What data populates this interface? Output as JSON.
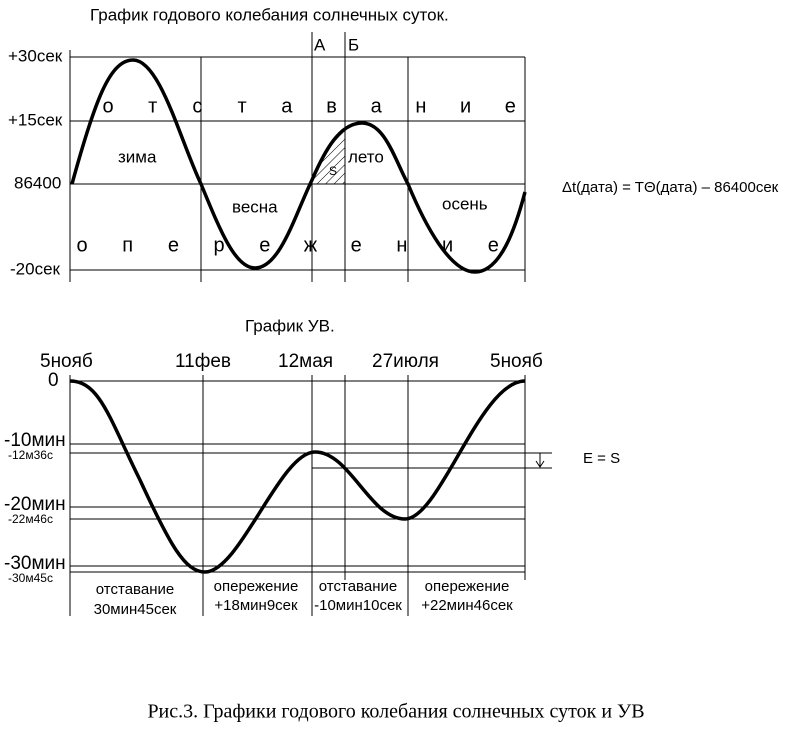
{
  "top_chart": {
    "title": "График годового колебания солнечных суток.",
    "markers": [
      "А",
      "Б"
    ],
    "y_labels": [
      "+30сек",
      "+15сек",
      "86400",
      "-20сек"
    ],
    "upper_letters": [
      "о",
      "т",
      "с",
      "т",
      "а",
      "в",
      "а",
      "н",
      "и",
      "е"
    ],
    "lower_letters": [
      "о",
      "п",
      "е",
      "р",
      "е",
      "ж",
      "е",
      "н",
      "и",
      "е"
    ],
    "seasons": [
      "зима",
      "весна",
      "лето",
      "осень"
    ],
    "area_label": "S",
    "formula": "Δt(дата) = TΘ(дата) – 86400сек"
  },
  "bottom_chart": {
    "title": "График УВ.",
    "dates": [
      "5нояб",
      "11фев",
      "12мая",
      "27июля",
      "5нояб"
    ],
    "zero_label": "0",
    "y_labels": [
      "-10мин",
      "-20мин",
      "-30мин"
    ],
    "y_sublabels": [
      "-12м36с",
      "-22м46с",
      "-30м45с"
    ],
    "periods": [
      {
        "status": "отставание",
        "amount": "30мин45сек"
      },
      {
        "status": "опережение",
        "amount": "+18мин9сек"
      },
      {
        "status": "отставание",
        "amount": "-10мин10сек"
      },
      {
        "status": "опережение",
        "amount": "+22мин46сек"
      }
    ],
    "equation": "E = S"
  },
  "caption": "Рис.3. Графики годового колебания солнечных суток и УВ"
}
